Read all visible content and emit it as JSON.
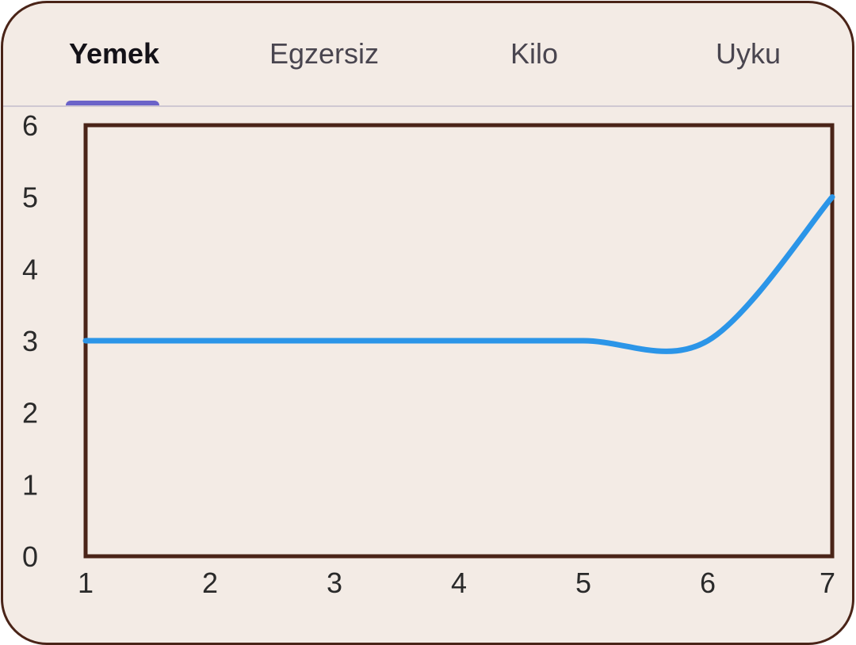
{
  "tabs": [
    {
      "label": "Yemek",
      "active": true
    },
    {
      "label": "Egzersiz",
      "active": false
    },
    {
      "label": "Kilo",
      "active": false
    },
    {
      "label": "Uyku",
      "active": false
    }
  ],
  "colors": {
    "background": "#f3ebe5",
    "border": "#4a2418",
    "line": "#2b95e8",
    "tab_indicator": "#6b63c9",
    "active_tab_text": "#141218",
    "inactive_tab_text": "#49454f"
  },
  "chart_data": {
    "type": "line",
    "title": "",
    "xlabel": "",
    "ylabel": "",
    "x": [
      1,
      2,
      3,
      4,
      5,
      6,
      7
    ],
    "series": [
      {
        "values": [
          3,
          3,
          3,
          3,
          3,
          3,
          5
        ]
      }
    ],
    "xlim": [
      1,
      7
    ],
    "ylim": [
      0,
      6
    ],
    "xticks": [
      "1",
      "2",
      "3",
      "4",
      "5",
      "6",
      "7"
    ],
    "yticks": [
      "0",
      "1",
      "2",
      "3",
      "4",
      "5",
      "6"
    ],
    "curved": true,
    "grid": false,
    "legend": "none"
  }
}
